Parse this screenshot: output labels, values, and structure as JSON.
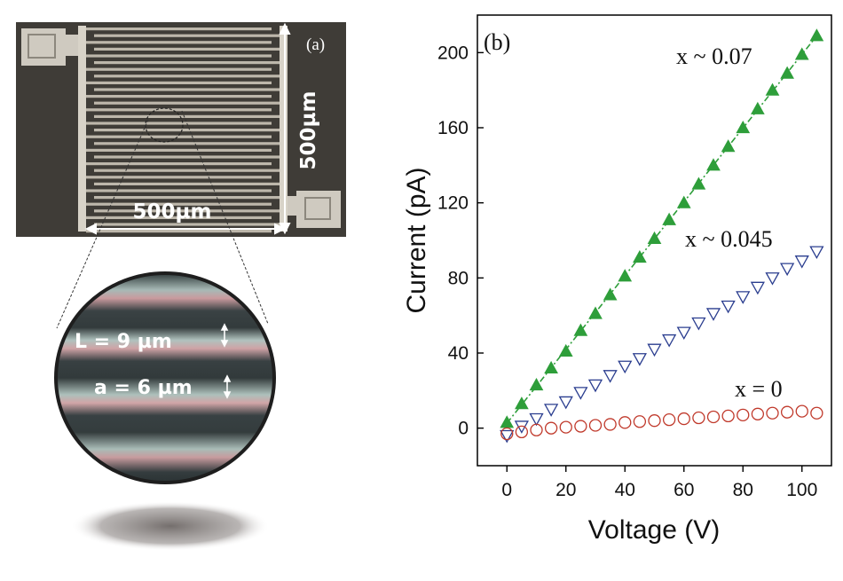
{
  "panel_a": {
    "label": "(a)",
    "width_label": "500µm",
    "height_label": "500µm",
    "zoom": {
      "L_label": "L = 9 µm",
      "a_label": "a = 6 µm"
    }
  },
  "chart_data": {
    "type": "scatter",
    "panel_label": "(b)",
    "title": "",
    "xlabel": "Voltage (V)",
    "ylabel": "Current (pA)",
    "xlim": [
      -10,
      110
    ],
    "ylim": [
      -20,
      220
    ],
    "xticks": [
      0,
      20,
      40,
      60,
      80,
      100
    ],
    "yticks": [
      0,
      40,
      80,
      120,
      160,
      200
    ],
    "grid": false,
    "series": [
      {
        "name": "x ~ 0.07",
        "marker": "filled-triangle-up",
        "color": "#2e9e3a",
        "fit_line": "dash-dot",
        "x": [
          0,
          5,
          10,
          15,
          20,
          25,
          30,
          35,
          40,
          45,
          50,
          55,
          60,
          65,
          70,
          75,
          80,
          85,
          90,
          95,
          100,
          105
        ],
        "y": [
          3,
          13,
          23,
          32,
          41,
          52,
          61,
          71,
          81,
          91,
          101,
          111,
          120,
          130,
          140,
          150,
          160,
          170,
          180,
          189,
          199,
          209
        ]
      },
      {
        "name": "x ~ 0.045",
        "marker": "open-triangle-down",
        "color": "#2a3d8f",
        "x": [
          0,
          5,
          10,
          15,
          20,
          25,
          30,
          35,
          40,
          45,
          50,
          55,
          60,
          65,
          70,
          75,
          80,
          85,
          90,
          95,
          100,
          105
        ],
        "y": [
          -4,
          1,
          5,
          10,
          14,
          19,
          23,
          28,
          33,
          37,
          42,
          47,
          51,
          56,
          61,
          65,
          70,
          75,
          80,
          85,
          89,
          94
        ]
      },
      {
        "name": "x = 0",
        "marker": "open-circle",
        "color": "#c0392b",
        "x": [
          0,
          5,
          10,
          15,
          20,
          25,
          30,
          35,
          40,
          45,
          50,
          55,
          60,
          65,
          70,
          75,
          80,
          85,
          90,
          95,
          100,
          105
        ],
        "y": [
          -3,
          -2,
          -1,
          0,
          0.5,
          1,
          1.5,
          2,
          3,
          3.5,
          4,
          4.5,
          5,
          5.5,
          6,
          6.5,
          7,
          7.5,
          8,
          8.5,
          9,
          8
        ]
      }
    ]
  }
}
